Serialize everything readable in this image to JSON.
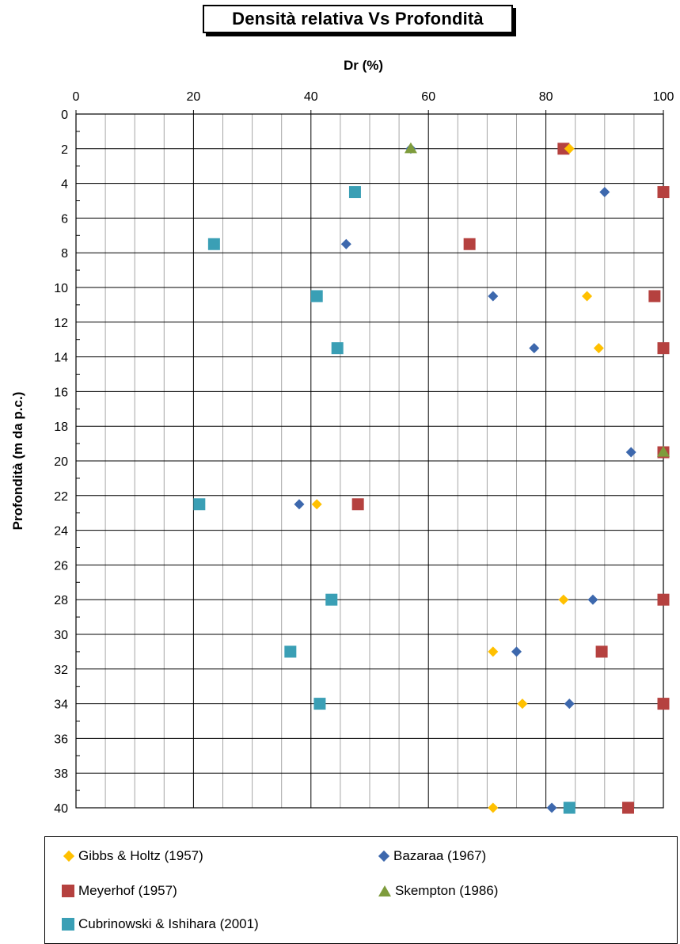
{
  "chart_data": {
    "type": "scatter",
    "title": "Densità relativa Vs Profondità",
    "xlabel": "Dr (%)",
    "ylabel": "Profondità (m da p.c.)",
    "xlim": [
      0,
      100
    ],
    "ylim": [
      0,
      40
    ],
    "y_inverted": true,
    "x_axis_position": "top",
    "x_major_ticks": [
      0,
      20,
      40,
      60,
      80,
      100
    ],
    "x_minor_step": 5,
    "y_major_ticks": [
      0,
      2,
      4,
      6,
      8,
      10,
      12,
      14,
      16,
      18,
      20,
      22,
      24,
      26,
      28,
      30,
      32,
      34,
      36,
      38,
      40
    ],
    "y_minor_step": 1,
    "grid": true,
    "legend_position": "bottom",
    "series": [
      {
        "name": "Gibbs & Holtz (1957)",
        "marker": "diamond",
        "color": "#ffc000",
        "points": [
          [
            84,
            2
          ],
          [
            87,
            10.5
          ],
          [
            89,
            13.5
          ],
          [
            41,
            22.5
          ],
          [
            83,
            28
          ],
          [
            71,
            31
          ],
          [
            76,
            34
          ],
          [
            71,
            40
          ]
        ]
      },
      {
        "name": "Bazaraa (1967)",
        "marker": "diamond",
        "color": "#3d68ad",
        "points": [
          [
            57,
            2
          ],
          [
            90,
            4.5
          ],
          [
            46,
            7.5
          ],
          [
            71,
            10.5
          ],
          [
            78,
            13.5
          ],
          [
            94.5,
            19.5
          ],
          [
            38,
            22.5
          ],
          [
            88,
            28
          ],
          [
            75,
            31
          ],
          [
            84,
            34
          ],
          [
            81,
            40
          ]
        ]
      },
      {
        "name": "Meyerhof (1957)",
        "marker": "square",
        "color": "#b5413f",
        "points": [
          [
            83,
            2
          ],
          [
            100,
            4.5
          ],
          [
            67,
            7.5
          ],
          [
            98.5,
            10.5
          ],
          [
            100,
            13.5
          ],
          [
            100,
            19.5
          ],
          [
            48,
            22.5
          ],
          [
            100,
            28
          ],
          [
            89.5,
            31
          ],
          [
            100,
            34
          ],
          [
            94,
            40
          ]
        ]
      },
      {
        "name": "Skempton (1986)",
        "marker": "triangle",
        "color": "#7e9c3c",
        "points": [
          [
            57,
            2
          ],
          [
            100,
            19.5
          ]
        ]
      },
      {
        "name": "Cubrinowski & Ishihara (2001)",
        "marker": "square",
        "color": "#3a9fb5",
        "points": [
          [
            47.5,
            4.5
          ],
          [
            23.5,
            7.5
          ],
          [
            41,
            10.5
          ],
          [
            44.5,
            13.5
          ],
          [
            21,
            22.5
          ],
          [
            43.5,
            28
          ],
          [
            36.5,
            31
          ],
          [
            41.5,
            34
          ],
          [
            84,
            40
          ]
        ]
      }
    ]
  }
}
